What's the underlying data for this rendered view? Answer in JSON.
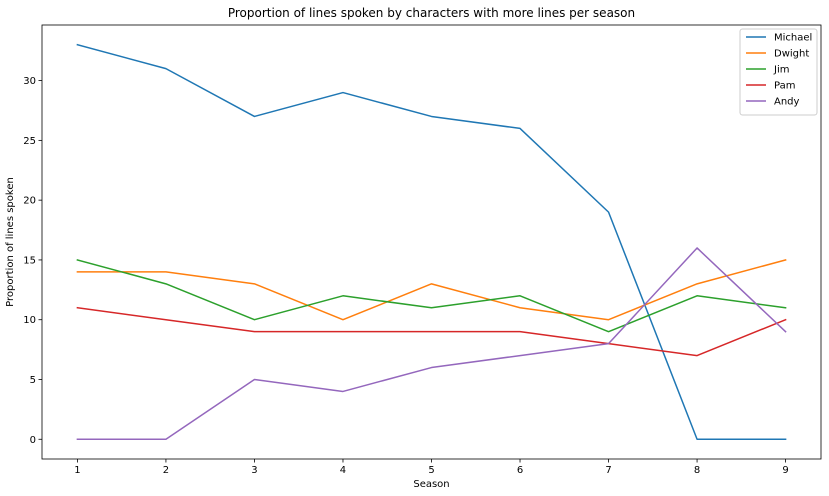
{
  "chart_data": {
    "type": "line",
    "title": "Proportion of lines spoken by characters with more lines per season",
    "xlabel": "Season",
    "ylabel": "Proportion of lines spoken",
    "x": [
      1,
      2,
      3,
      4,
      5,
      6,
      7,
      8,
      9
    ],
    "xlim": [
      0.6,
      9.4
    ],
    "ylim": [
      -1.65,
      34.65
    ],
    "xticks": [
      1,
      2,
      3,
      4,
      5,
      6,
      7,
      8,
      9
    ],
    "yticks": [
      0,
      5,
      10,
      15,
      20,
      25,
      30
    ],
    "grid": false,
    "legend": "top-right",
    "series": [
      {
        "name": "Michael",
        "color": "#1f77b4",
        "values": [
          33,
          31,
          27,
          29,
          27,
          26,
          19,
          0,
          0
        ]
      },
      {
        "name": "Dwight",
        "color": "#ff7f0e",
        "values": [
          14,
          14,
          13,
          10,
          13,
          11,
          10,
          13,
          15
        ]
      },
      {
        "name": "Jim",
        "color": "#2ca02c",
        "values": [
          15,
          13,
          10,
          12,
          11,
          12,
          9,
          12,
          11
        ]
      },
      {
        "name": "Pam",
        "color": "#d62728",
        "values": [
          11,
          10,
          9,
          9,
          9,
          9,
          8,
          7,
          10
        ]
      },
      {
        "name": "Andy",
        "color": "#9467bd",
        "values": [
          0,
          0,
          5,
          4,
          6,
          7,
          8,
          16,
          9
        ]
      }
    ]
  }
}
